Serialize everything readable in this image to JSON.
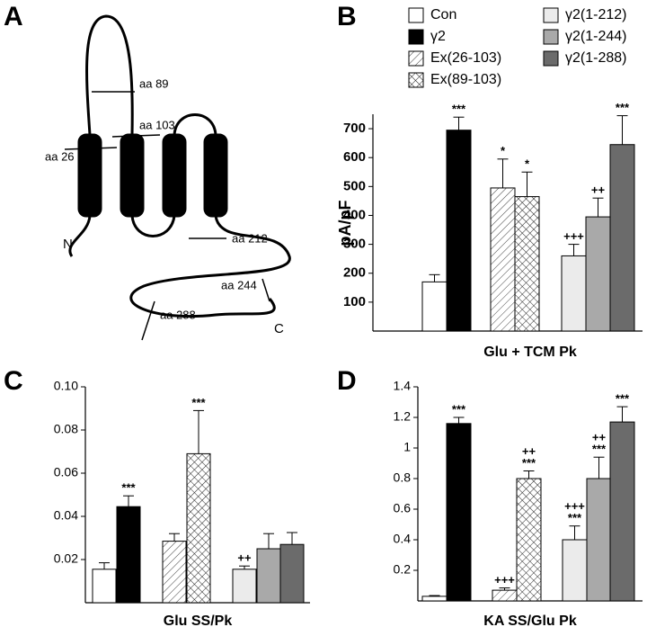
{
  "diagram": {
    "panel_label": "A",
    "labels": {
      "aa89": "aa 89",
      "aa103": "aa 103",
      "aa26": "aa 26",
      "aa212": "aa 212",
      "aa244": "aa 244",
      "aa288": "aa 288",
      "n_term": "N",
      "c_term": "C"
    }
  },
  "chart_data": [
    {
      "type": "bar",
      "panel_label": "B",
      "xlabel": "Glu + TCM Pk",
      "ylabel": "pA/pF",
      "ylim": [
        0,
        750
      ],
      "yticks": [
        100,
        200,
        300,
        400,
        500,
        600,
        700
      ],
      "series": [
        {
          "name": "Con",
          "color": "#ffffff",
          "values": [
            170
          ],
          "errors": [
            25
          ],
          "annotation": []
        },
        {
          "name": "γ2",
          "color": "#000000",
          "values": [
            695
          ],
          "errors": [
            45
          ],
          "annotation": [
            "***"
          ]
        },
        {
          "name": "Ex(26-103)",
          "color": "#ffffff",
          "pattern": "hatch",
          "values": [
            495
          ],
          "errors": [
            100
          ],
          "annotation": [
            "*"
          ]
        },
        {
          "name": "Ex(89-103)",
          "color": "#ffffff",
          "pattern": "crosshatch",
          "values": [
            465
          ],
          "errors": [
            85
          ],
          "annotation": [
            "*"
          ]
        },
        {
          "name": "γ2(1-212)",
          "color": "#ebebeb",
          "values": [
            260
          ],
          "errors": [
            40
          ],
          "annotation": [
            "+++"
          ]
        },
        {
          "name": "γ2(1-244)",
          "color": "#a9a9a9",
          "values": [
            395
          ],
          "errors": [
            65
          ],
          "annotation": [
            "++"
          ]
        },
        {
          "name": "γ2(1-288)",
          "color": "#6b6b6b",
          "values": [
            645
          ],
          "errors": [
            100
          ],
          "annotation": [
            "***"
          ]
        }
      ]
    },
    {
      "type": "bar",
      "panel_label": "C",
      "xlabel": "Glu SS/Pk",
      "ylim": [
        0,
        0.1
      ],
      "yticks": [
        0.02,
        0.04,
        0.06,
        0.08,
        {
          "value": 0.1,
          "label": "0.10"
        }
      ],
      "series": [
        {
          "color": "#ffffff",
          "values": [
            0.0155
          ],
          "errors": [
            0.003
          ],
          "annotation": []
        },
        {
          "color": "#000000",
          "values": [
            0.0445
          ],
          "errors": [
            0.005
          ],
          "annotation": [
            "***"
          ]
        },
        {
          "color": "#ffffff",
          "pattern": "hatch",
          "values": [
            0.0285
          ],
          "errors": [
            0.0035
          ],
          "annotation": []
        },
        {
          "color": "#ffffff",
          "pattern": "crosshatch",
          "values": [
            0.069
          ],
          "errors": [
            0.02
          ],
          "annotation": [
            "***"
          ]
        },
        {
          "color": "#ebebeb",
          "values": [
            0.0155
          ],
          "errors": [
            0.0015
          ],
          "annotation": [
            "++"
          ]
        },
        {
          "color": "#a9a9a9",
          "values": [
            0.025
          ],
          "errors": [
            0.007
          ],
          "annotation": []
        },
        {
          "color": "#6b6b6b",
          "values": [
            0.027
          ],
          "errors": [
            0.0055
          ],
          "annotation": []
        }
      ]
    },
    {
      "type": "bar",
      "panel_label": "D",
      "xlabel": "KA SS/Glu Pk",
      "ylim": [
        0,
        1.4
      ],
      "yticks": [
        0.2,
        0.4,
        0.6,
        0.8,
        1,
        1.2,
        1.4
      ],
      "series": [
        {
          "color": "#ffffff",
          "values": [
            0.03
          ],
          "errors": [
            0.005
          ],
          "annotation": []
        },
        {
          "color": "#000000",
          "values": [
            1.16
          ],
          "errors": [
            0.04
          ],
          "annotation": [
            "***"
          ]
        },
        {
          "color": "#ffffff",
          "pattern": "hatch",
          "values": [
            0.07
          ],
          "errors": [
            0.015
          ],
          "annotation": [
            "+++"
          ]
        },
        {
          "color": "#ffffff",
          "pattern": "crosshatch",
          "values": [
            0.8
          ],
          "errors": [
            0.05
          ],
          "annotation": [
            "++",
            "***"
          ]
        },
        {
          "color": "#ebebeb",
          "values": [
            0.4
          ],
          "errors": [
            0.09
          ],
          "annotation": [
            "+++",
            "***"
          ]
        },
        {
          "color": "#a9a9a9",
          "values": [
            0.8
          ],
          "errors": [
            0.14
          ],
          "annotation": [
            "++",
            "***"
          ]
        },
        {
          "color": "#6b6b6b",
          "values": [
            1.17
          ],
          "errors": [
            0.1
          ],
          "annotation": [
            "***"
          ]
        }
      ]
    }
  ]
}
